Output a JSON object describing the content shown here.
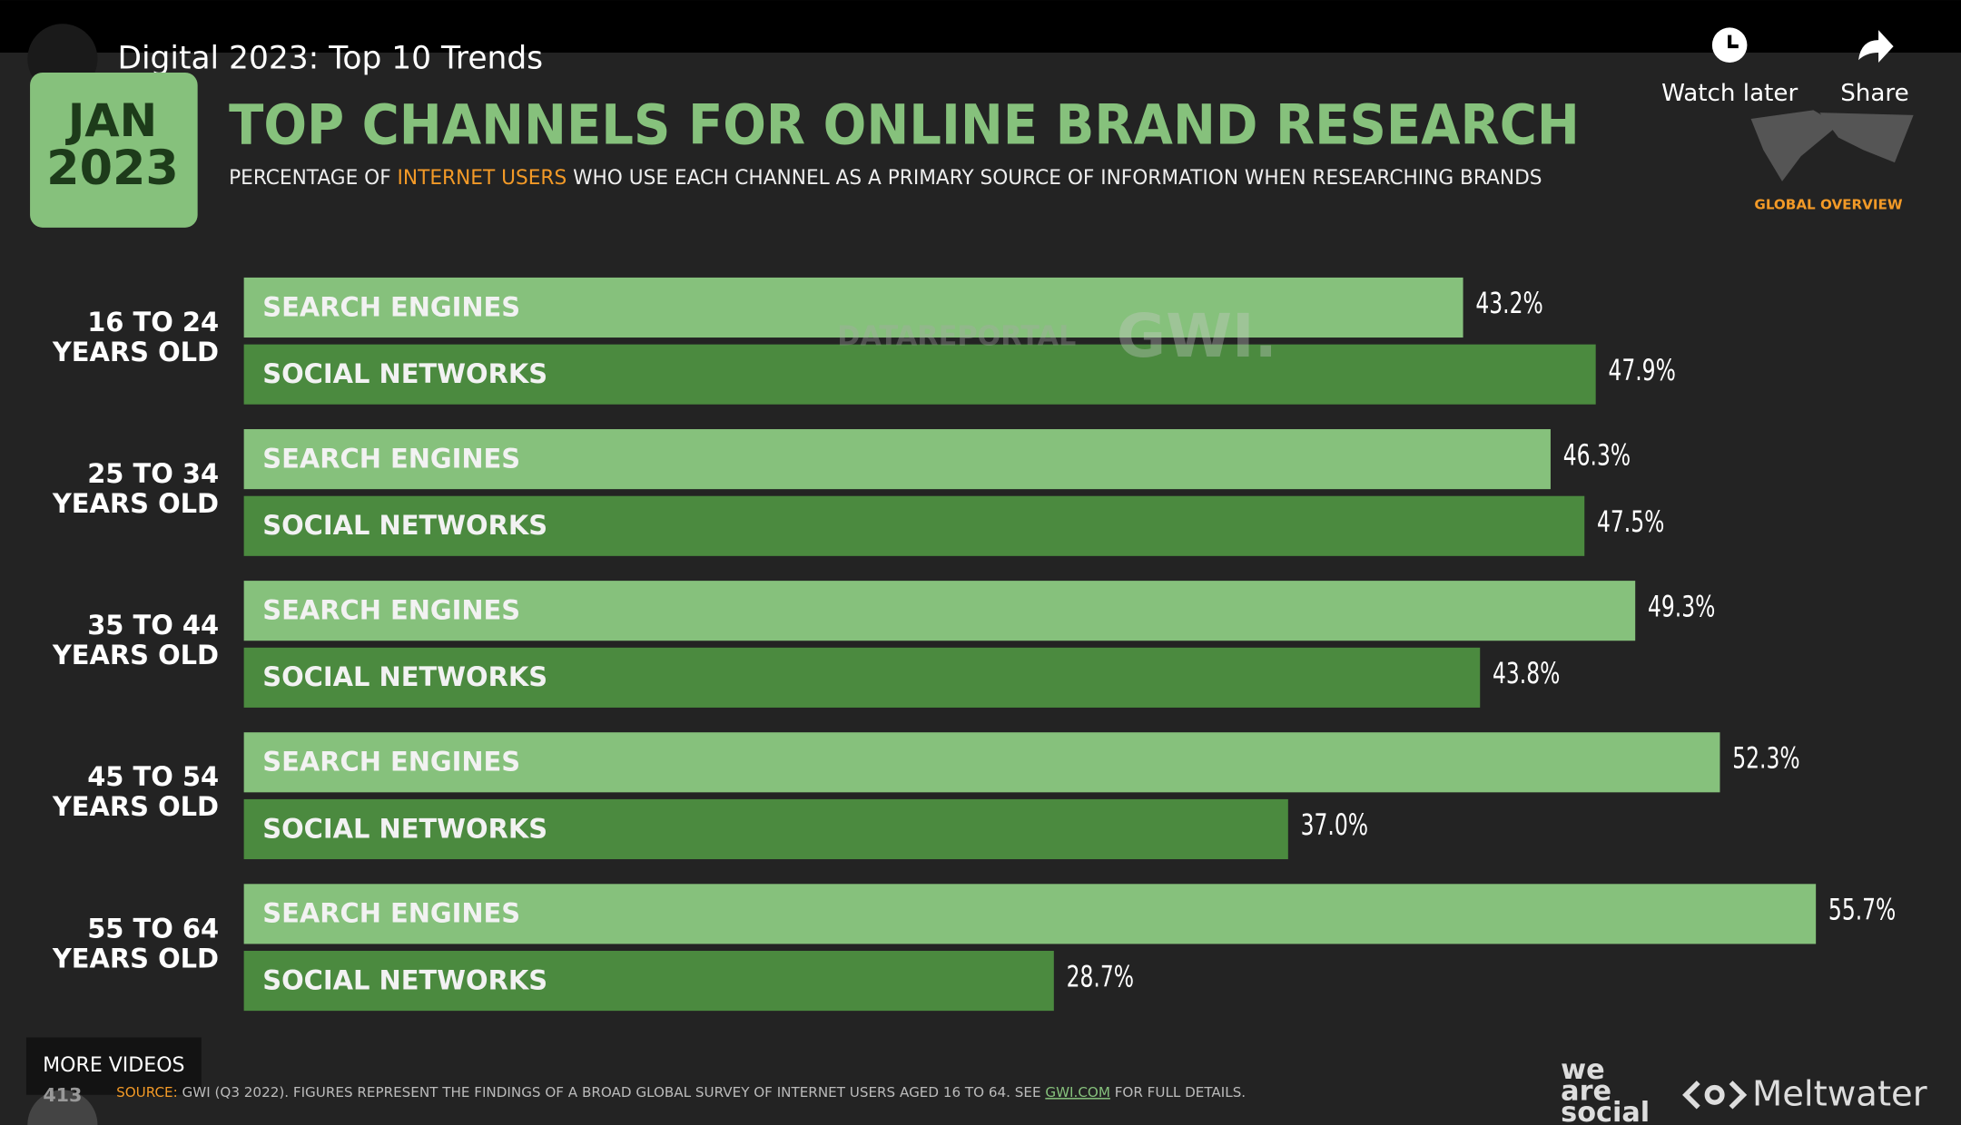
{
  "ui": {
    "video_title": "Digital 2023: Top 10 Trends",
    "watch_later": "Watch later",
    "share": "Share",
    "badge_month": "JAN",
    "badge_year": "2023",
    "subtitle_start": "PERCENTAGE OF ",
    "subtitle_highlight": "INTERNET USERS",
    "subtitle_end": " WHO USE EACH CHANNEL AS A PRIMARY SOURCE OF INFORMATION WHEN RESEARCHING BRANDS",
    "region": "GLOBAL OVERVIEW",
    "watermark_left": "DATAREPORTAL",
    "watermark_right": "GWI.",
    "more_videos": "MORE VIDEOS",
    "page_number": "413",
    "source_label": "SOURCE:",
    "source_text": " GWI (Q3 2022). FIGURES REPRESENT THE FINDINGS OF A BROAD GLOBAL SURVEY OF INTERNET USERS AGED 16 TO 64. SEE ",
    "source_link": "GWI.COM",
    "source_end": " FOR FULL DETAILS.",
    "logo_we": "we",
    "logo_are": "are",
    "logo_social": "social",
    "logo_meltwater": "Meltwater"
  },
  "chart_data": {
    "type": "hbar",
    "title": "TOP CHANNELS FOR ONLINE BRAND RESEARCH",
    "categories": [
      "16 TO 24 YEARS OLD",
      "25 TO 34 YEARS OLD",
      "35 TO 44 YEARS OLD",
      "45 TO 54 YEARS OLD",
      "55 TO 64 YEARS OLD"
    ],
    "series": [
      {
        "name": "SEARCH ENGINES",
        "color": "#86c17c",
        "values": [
          43.2,
          46.3,
          49.3,
          52.3,
          55.7
        ],
        "value_labels": [
          "43.2%",
          "46.3%",
          "49.3%",
          "52.3%",
          "55.7%"
        ]
      },
      {
        "name": "SOCIAL NETWORKS",
        "color": "#4b8a3f",
        "values": [
          47.9,
          47.5,
          43.8,
          37.0,
          28.7
        ],
        "value_labels": [
          "47.9%",
          "47.5%",
          "43.8%",
          "37.0%",
          "28.7%"
        ]
      }
    ],
    "xlim": [
      0,
      60
    ]
  }
}
